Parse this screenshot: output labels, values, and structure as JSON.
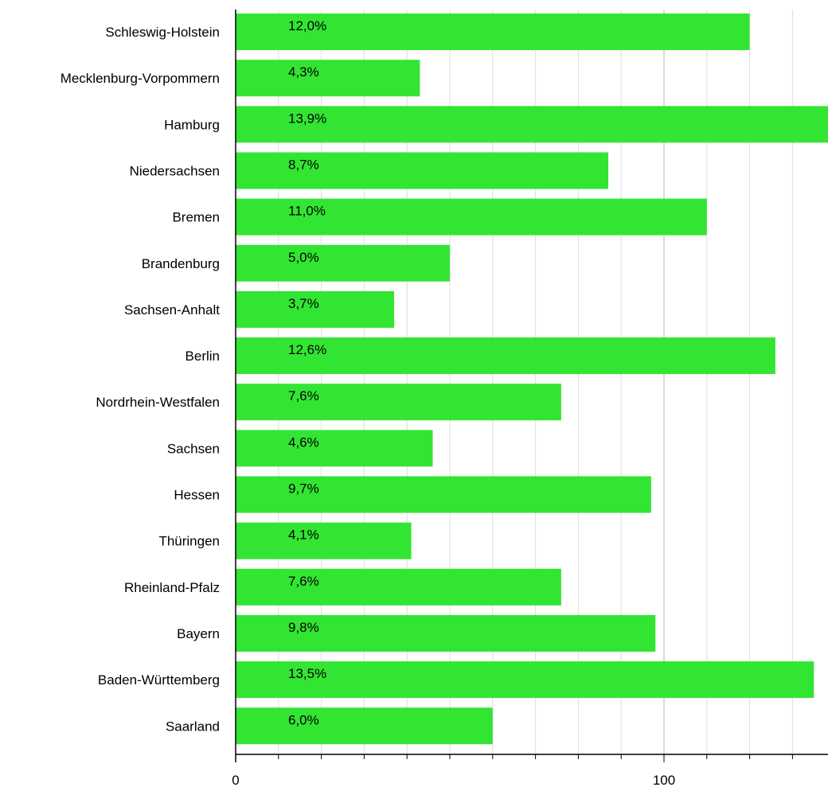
{
  "chart_data": {
    "type": "bar",
    "orientation": "horizontal",
    "categories": [
      "Schleswig-Holstein",
      "Mecklenburg-Vorpommern",
      "Hamburg",
      "Niedersachsen",
      "Bremen",
      "Brandenburg",
      "Sachsen-Anhalt",
      "Berlin",
      "Nordrhein-Westfalen",
      "Sachsen",
      "Hessen",
      "Thüringen",
      "Rheinland-Pfalz",
      "Bayern",
      "Baden-Württemberg",
      "Saarland"
    ],
    "values": [
      120,
      43,
      139,
      87,
      110,
      50,
      37,
      126,
      76,
      46,
      97,
      41,
      76,
      98,
      135,
      60
    ],
    "data_labels": [
      "12,0%",
      "4,3%",
      "13,9%",
      "8,7%",
      "11,0%",
      "5,0%",
      "3,7%",
      "12,6%",
      "7,6%",
      "4,6%",
      "9,7%",
      "4,1%",
      "7,6%",
      "9,8%",
      "13,5%",
      "6,0%"
    ],
    "x_ticks": [
      "0",
      "100"
    ],
    "xlim": [
      0,
      139
    ],
    "grid": true,
    "bar_color": "#33e533",
    "title": "",
    "xlabel": "",
    "ylabel": ""
  }
}
